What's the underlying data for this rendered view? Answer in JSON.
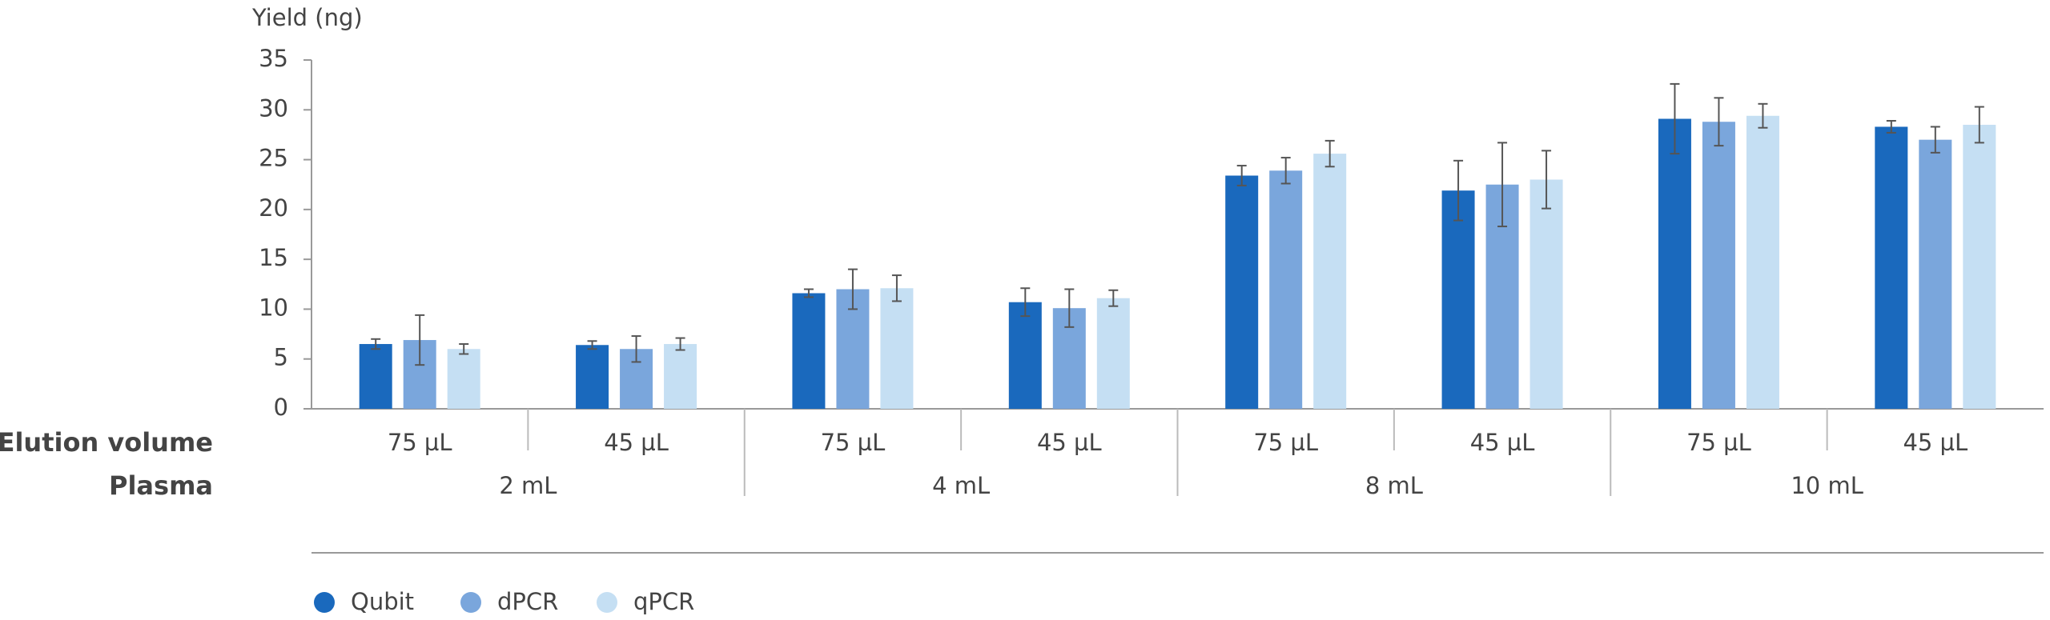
{
  "chart_data": {
    "type": "bar",
    "y_label": "Yield (ng)",
    "row_labels": [
      "Elution volume",
      "Plasma"
    ],
    "categories": [
      "75 µL",
      "45 µL",
      "75 µL",
      "45 µL",
      "75 µL",
      "45 µL",
      "75 µL",
      "45 µL"
    ],
    "groups": [
      "2 mL",
      "4 mL",
      "8 mL",
      "10 mL"
    ],
    "series": [
      {
        "name": "Qubit",
        "color": "#1a69bd",
        "values": [
          6.5,
          6.4,
          11.6,
          10.7,
          23.4,
          21.9,
          29.1,
          28.3
        ],
        "errors": [
          0.5,
          0.4,
          0.4,
          1.4,
          1.0,
          3.0,
          3.5,
          0.6
        ]
      },
      {
        "name": "dPCR",
        "color": "#7aa6dc",
        "values": [
          6.9,
          6.0,
          12.0,
          10.1,
          23.9,
          22.5,
          28.8,
          27.0
        ],
        "errors": [
          2.5,
          1.3,
          2.0,
          1.9,
          1.3,
          4.2,
          2.4,
          1.3
        ]
      },
      {
        "name": "qPCR",
        "color": "#c5dff3",
        "values": [
          6.0,
          6.5,
          12.1,
          11.1,
          25.6,
          23.0,
          29.4,
          28.5
        ],
        "errors": [
          0.5,
          0.6,
          1.3,
          0.8,
          1.3,
          2.9,
          1.2,
          1.8
        ]
      }
    ],
    "ylim": [
      0,
      35
    ],
    "yticks": [
      0,
      5,
      10,
      15,
      20,
      25,
      30,
      35
    ]
  }
}
